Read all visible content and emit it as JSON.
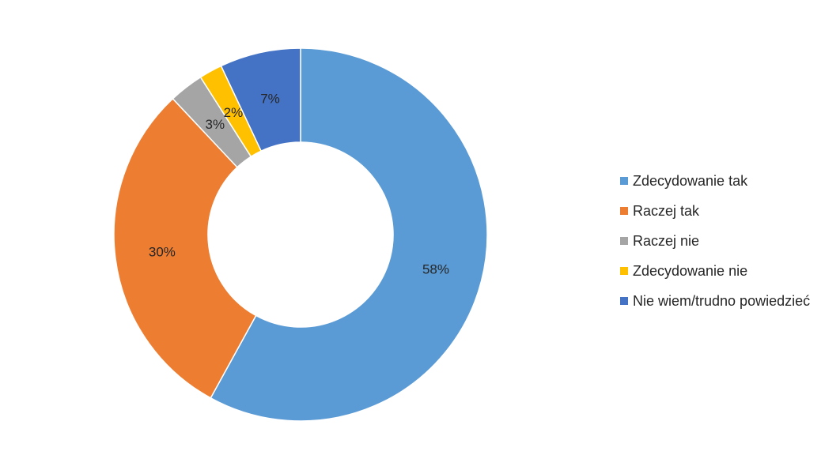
{
  "chart_data": {
    "type": "pie",
    "variant": "doughnut",
    "categories": [
      "Zdecydowanie tak",
      "Raczej tak",
      "Raczej nie",
      "Zdecydowanie nie",
      "Nie wiem/trudno powiedzieć"
    ],
    "values": [
      58,
      30,
      3,
      2,
      7
    ],
    "data_labels": [
      "58%",
      "30%",
      "3%",
      "2%",
      "7%"
    ],
    "colors": [
      "#5B9BD5",
      "#ED7D31",
      "#A5A5A5",
      "#FFC000",
      "#4472C4"
    ],
    "legend_position": "right",
    "title": ""
  }
}
